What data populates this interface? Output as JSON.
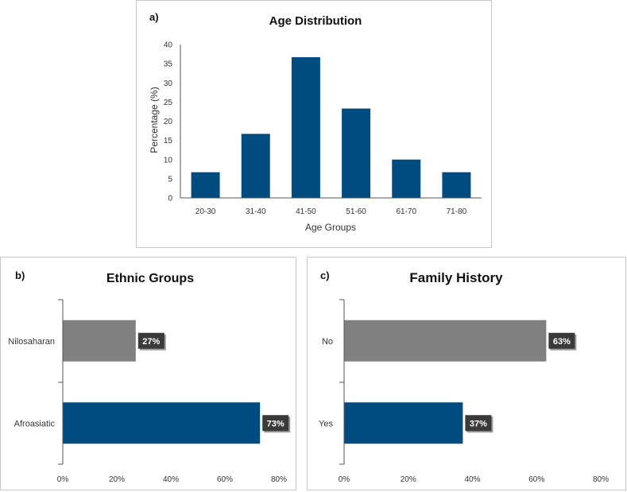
{
  "chart_data": [
    {
      "panel_label": "a)",
      "type": "bar",
      "title": "Age  Distribution",
      "xlabel": "Age Groups",
      "ylabel": "Percentage (%)",
      "categories": [
        "20-30",
        "31-40",
        "41-50",
        "51-60",
        "61-70",
        "71-80"
      ],
      "values": [
        6.7,
        16.7,
        36.7,
        23.3,
        10,
        6.7
      ],
      "ylim": [
        0,
        40
      ],
      "yticks": [
        "0",
        "5",
        "10",
        "15",
        "20",
        "25",
        "30",
        "35",
        "40"
      ],
      "color": "#004b80"
    },
    {
      "panel_label": "b)",
      "type": "bar",
      "orientation": "horizontal",
      "title": "Ethnic Groups",
      "categories": [
        "Nilosaharan",
        "Afroasiatic"
      ],
      "values": [
        27,
        73
      ],
      "data_labels": [
        "27%",
        "73%"
      ],
      "colors": [
        "#808080",
        "#004b80"
      ],
      "xlim": [
        0,
        80
      ],
      "xticks": [
        "0%",
        "20%",
        "40%",
        "60%",
        "80%"
      ]
    },
    {
      "panel_label": "c)",
      "type": "bar",
      "orientation": "horizontal",
      "title": "Family History",
      "categories": [
        "No",
        "Yes"
      ],
      "values": [
        63,
        37
      ],
      "data_labels": [
        "63%",
        "37%"
      ],
      "colors": [
        "#808080",
        "#004b80"
      ],
      "xlim": [
        0,
        80
      ],
      "xticks": [
        "0%",
        "20%",
        "40%",
        "60%",
        "80%"
      ]
    }
  ],
  "label_box_color": "#3a3a3a"
}
